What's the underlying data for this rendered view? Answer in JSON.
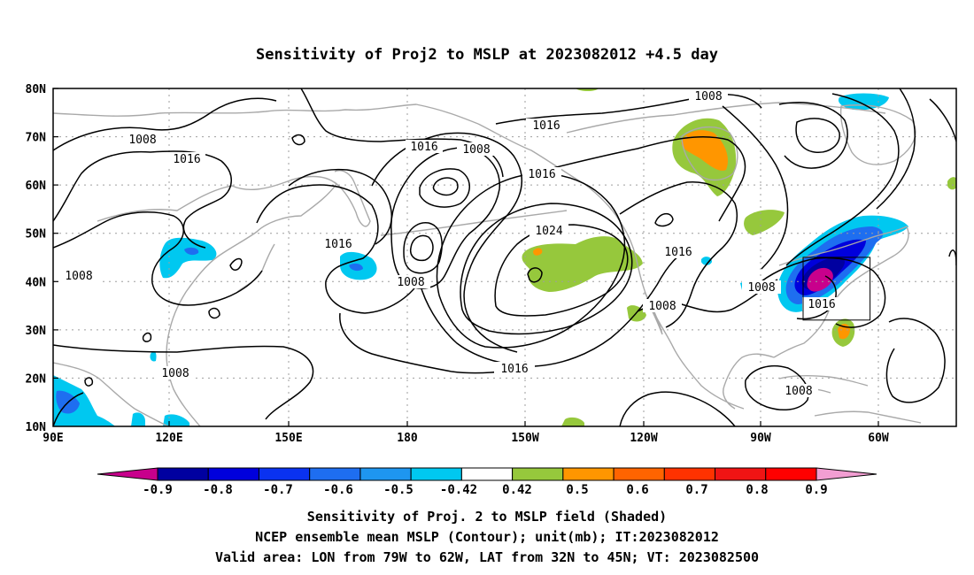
{
  "title": "Sensitivity of Proj2 to MSLP at 2023082012 +4.5 day",
  "lat_labels": [
    "80N",
    "70N",
    "60N",
    "50N",
    "40N",
    "30N",
    "20N",
    "10N"
  ],
  "lon_labels": [
    "90E",
    "120E",
    "150E",
    "180",
    "150W",
    "120W",
    "90W",
    "60W"
  ],
  "contour_labels": {
    "c1": "1008",
    "c2": "1016",
    "c3": "1016",
    "c4": "1008",
    "c5": "1016",
    "c6": "1016",
    "c7": "1008",
    "c8": "1016",
    "c9": "1008",
    "c10": "1024",
    "c11": "1016",
    "c12": "1008",
    "c13": "1016",
    "c14": "1008",
    "c15": "1016",
    "c16": "1008",
    "c17": "1008"
  },
  "colorbar": {
    "labels": [
      "-0.9",
      "-0.8",
      "-0.7",
      "-0.6",
      "-0.5",
      "-0.42",
      "0.42",
      "0.5",
      "0.6",
      "0.7",
      "0.8",
      "0.9"
    ],
    "colors": [
      "#c8008c",
      "#0000a0",
      "#0000dc",
      "#0a32f0",
      "#1e6ef0",
      "#1e96f0",
      "#00c8f0",
      "#ffffff",
      "#96c83c",
      "#ff9600",
      "#ff6400",
      "#ff3200",
      "#f01414",
      "#ff0000",
      "#f29ed2"
    ]
  },
  "caption": {
    "line1": "Sensitivity of Proj. 2 to MSLP field (Shaded)",
    "line2": "NCEP ensemble mean MSLP (Contour); unit(mb); IT:2023082012",
    "line3": "Valid area: LON from 79W to 62W, LAT from 32N to 45N; VT: 2023082500"
  }
}
